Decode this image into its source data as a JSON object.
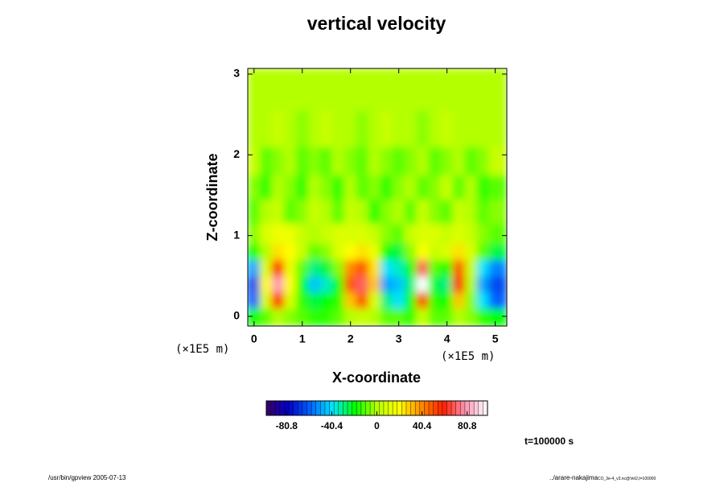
{
  "chart_data": {
    "type": "heatmap",
    "title": "vertical velocity",
    "xlabel": "X-coordinate",
    "ylabel": "Z-coordinate",
    "x_unit": "(×1E5 m)",
    "y_unit": "(×1E5 m)",
    "time_label": "t=100000 s",
    "footer_left": "/usr/bin/gpview 2005-07-13",
    "footer_right": "../arare-nakajima",
    "footer_right_sub": "CO_3e-4_v3.nc@Vel2,t=100000",
    "xlim": [
      -0.13,
      5.24
    ],
    "ylim": [
      -0.12,
      3.07
    ],
    "xticks": [
      0,
      1,
      2,
      3,
      4,
      5
    ],
    "yticks": [
      0,
      1,
      2,
      3
    ],
    "x": [
      0,
      0.25,
      0.5,
      0.75,
      1,
      1.25,
      1.5,
      1.75,
      2,
      2.25,
      2.5,
      2.75,
      3,
      3.25,
      3.5,
      3.75,
      4,
      4.25,
      4.5,
      4.75,
      5
    ],
    "y": [
      0,
      0.2,
      0.4,
      0.6,
      0.8,
      1.0,
      1.3,
      1.6,
      1.9,
      2.3,
      2.8
    ],
    "z": [
      [
        -20,
        -10,
        0,
        -5,
        -10,
        -15,
        -15,
        -10,
        0,
        5,
        0,
        -10,
        -10,
        -15,
        5,
        -10,
        -10,
        0,
        -5,
        -15,
        -20
      ],
      [
        -60,
        10,
        60,
        10,
        -15,
        -25,
        -20,
        -15,
        30,
        50,
        10,
        -30,
        -40,
        -20,
        50,
        -15,
        -20,
        30,
        -5,
        -40,
        -60
      ],
      [
        -65,
        20,
        80,
        20,
        -20,
        -45,
        -35,
        -20,
        50,
        70,
        30,
        -50,
        -45,
        -30,
        99,
        -25,
        -30,
        60,
        0,
        -50,
        -65
      ],
      [
        -50,
        10,
        60,
        15,
        -10,
        -30,
        -25,
        -5,
        40,
        50,
        25,
        -40,
        -35,
        -20,
        70,
        -10,
        -20,
        50,
        5,
        -40,
        -55
      ],
      [
        -20,
        0,
        25,
        20,
        5,
        -10,
        -5,
        10,
        20,
        25,
        15,
        -20,
        -25,
        -5,
        20,
        5,
        10,
        25,
        10,
        -10,
        -25
      ],
      [
        -5,
        10,
        15,
        15,
        5,
        0,
        5,
        10,
        10,
        10,
        5,
        -5,
        -10,
        5,
        10,
        10,
        5,
        10,
        5,
        -5,
        -10
      ],
      [
        -10,
        0,
        5,
        -10,
        -5,
        5,
        0,
        -10,
        5,
        0,
        -15,
        -5,
        0,
        -10,
        5,
        -5,
        -10,
        5,
        0,
        -10,
        -5
      ],
      [
        -5,
        -15,
        0,
        -5,
        -15,
        0,
        -5,
        -15,
        0,
        -10,
        -5,
        -15,
        -5,
        0,
        -10,
        -5,
        5,
        -10,
        0,
        -15,
        -10
      ],
      [
        5,
        -10,
        -5,
        0,
        -10,
        -5,
        -10,
        0,
        -5,
        -10,
        0,
        -5,
        -10,
        -5,
        0,
        -10,
        -5,
        0,
        -10,
        -5,
        5
      ],
      [
        0,
        0,
        5,
        0,
        -5,
        0,
        5,
        0,
        0,
        -5,
        0,
        5,
        0,
        0,
        -5,
        0,
        5,
        0,
        0,
        0,
        0
      ],
      [
        0,
        0,
        0,
        0,
        0,
        0,
        0,
        0,
        0,
        0,
        0,
        0,
        0,
        0,
        0,
        0,
        0,
        0,
        0,
        0,
        0
      ]
    ],
    "clim": [
      -99,
      99
    ],
    "cticks": [
      -80.8,
      -40.4,
      0,
      40.4,
      80.8
    ],
    "colormap": [
      "#3c0064",
      "#0000c8",
      "#0064ff",
      "#00e6ff",
      "#00ff00",
      "#b4ff00",
      "#ffff00",
      "#ff8c00",
      "#ff1e00",
      "#ff96b4",
      "#ffffff"
    ]
  }
}
